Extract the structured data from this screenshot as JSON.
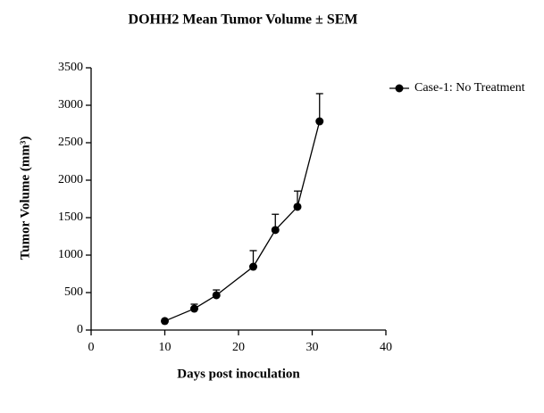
{
  "chart_data": {
    "type": "line",
    "title": "DOHH2 Mean Tumor Volume ± SEM",
    "x_label": "Days post inoculation",
    "y_label": "Tumor Volume (mm³)",
    "x": [
      10,
      14,
      17,
      22,
      25,
      28,
      31
    ],
    "series": [
      {
        "name": "Case-1: No Treatment",
        "color": "#000000",
        "values": [
          120,
          285,
          465,
          845,
          1335,
          1645,
          2785
        ],
        "errors": [
          20,
          60,
          70,
          215,
          210,
          210,
          370
        ]
      }
    ],
    "xlim": [
      0,
      40
    ],
    "xticks": [
      0,
      10,
      20,
      30,
      40
    ],
    "ylim": [
      0,
      3500
    ],
    "yticks": [
      0,
      500,
      1000,
      1500,
      2000,
      2500,
      3000,
      3500
    ],
    "legend": "top-right"
  }
}
